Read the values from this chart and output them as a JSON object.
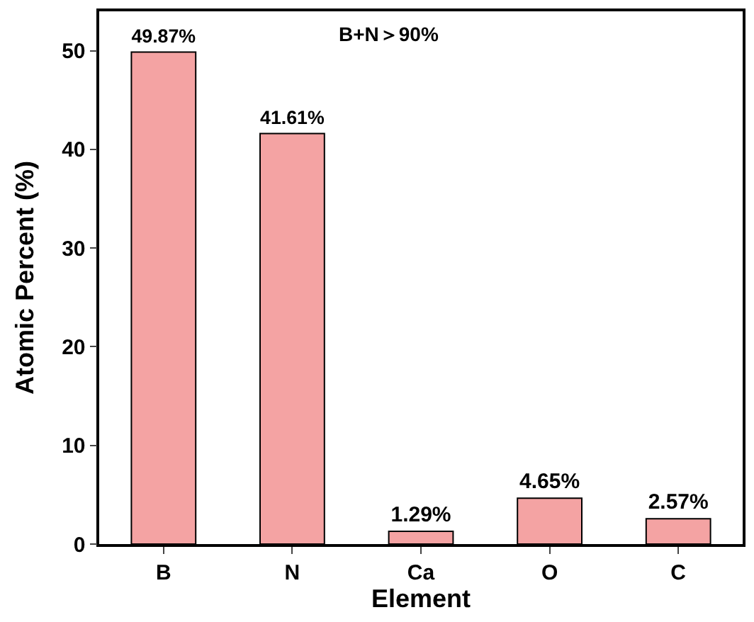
{
  "chart_data": {
    "type": "bar",
    "xlabel": "Element",
    "ylabel": "Atomic Percent (%)",
    "categories": [
      "B",
      "N",
      "Ca",
      "O",
      "C"
    ],
    "values": [
      49.87,
      41.61,
      1.29,
      4.65,
      2.57
    ],
    "value_labels": [
      "49.87%",
      "41.61%",
      "1.29%",
      "4.65%",
      "2.57%"
    ],
    "color": "#f4a3a3",
    "ylim": [
      0,
      54
    ],
    "yticks": [
      0,
      10,
      20,
      30,
      40,
      50
    ],
    "annotations": [
      "B+N＞90%"
    ]
  }
}
